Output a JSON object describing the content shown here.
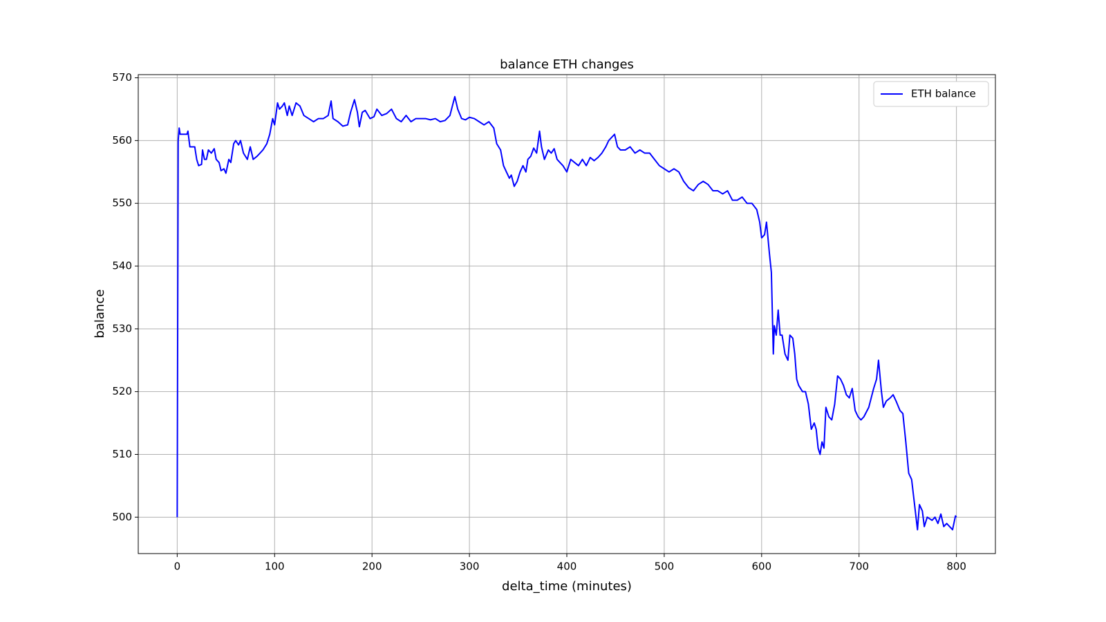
{
  "chart_data": {
    "type": "line",
    "title": "balance ETH changes",
    "x_label": "delta_time (minutes)",
    "y_label": "balance",
    "x": [
      0,
      1,
      2,
      3,
      10,
      11,
      13,
      18,
      20,
      22,
      25,
      26,
      28,
      30,
      32,
      35,
      38,
      40,
      43,
      45,
      48,
      50,
      53,
      55,
      58,
      60,
      63,
      65,
      68,
      72,
      75,
      78,
      82,
      85,
      88,
      92,
      95,
      98,
      100,
      103,
      105,
      108,
      110,
      113,
      115,
      118,
      122,
      126,
      130,
      135,
      140,
      145,
      150,
      155,
      158,
      160,
      165,
      170,
      175,
      178,
      182,
      185,
      187,
      190,
      193,
      198,
      202,
      205,
      210,
      215,
      220,
      225,
      230,
      235,
      240,
      245,
      250,
      255,
      260,
      265,
      270,
      275,
      280,
      285,
      288,
      292,
      296,
      300,
      305,
      310,
      315,
      320,
      325,
      328,
      332,
      335,
      338,
      341,
      343,
      346,
      349,
      352,
      355,
      358,
      360,
      363,
      366,
      369,
      372,
      374,
      377,
      381,
      384,
      387,
      390,
      393,
      396,
      400,
      404,
      408,
      412,
      416,
      420,
      424,
      428,
      432,
      436,
      440,
      443,
      446,
      449,
      452,
      455,
      460,
      465,
      470,
      475,
      480,
      485,
      490,
      495,
      500,
      505,
      510,
      515,
      520,
      525,
      530,
      535,
      540,
      545,
      550,
      555,
      560,
      565,
      570,
      575,
      580,
      585,
      590,
      595,
      598,
      600,
      603,
      605,
      608,
      610,
      612,
      613,
      615,
      617,
      619,
      621,
      624,
      627,
      629,
      632,
      634,
      636,
      638,
      642,
      645,
      648,
      651,
      654,
      656,
      658,
      660,
      662,
      664,
      666,
      669,
      672,
      675,
      678,
      681,
      684,
      687,
      690,
      693,
      696,
      699,
      702,
      705,
      710,
      715,
      718,
      720,
      723,
      725,
      728,
      732,
      735,
      738,
      742,
      745,
      748,
      751,
      754,
      757,
      760,
      762,
      765,
      767,
      770,
      775,
      778,
      781,
      784,
      787,
      790,
      793,
      796,
      799,
      800
    ],
    "series": [
      {
        "name": "ETH balance",
        "color": "#0000ff",
        "values": [
          500,
          560,
          562,
          561,
          561,
          561.5,
          559,
          559,
          557,
          556,
          556.2,
          558.5,
          557,
          557,
          558.5,
          558,
          558.7,
          557,
          556.5,
          555.2,
          555.5,
          554.8,
          557,
          556.5,
          559.5,
          560,
          559.3,
          560,
          558,
          557,
          559,
          557,
          557.5,
          558,
          558.5,
          559.5,
          561,
          563.5,
          562.5,
          566,
          565,
          565.5,
          566,
          564,
          565.5,
          564,
          566,
          565.5,
          564,
          563.5,
          563,
          563.5,
          563.5,
          564,
          566.3,
          563.5,
          563,
          562.3,
          562.5,
          564.5,
          566.5,
          564.5,
          562.2,
          564.5,
          564.8,
          563.5,
          563.8,
          565,
          564,
          564.3,
          565,
          563.5,
          563,
          564,
          563,
          563.5,
          563.5,
          563.5,
          563.3,
          563.5,
          563,
          563.2,
          564,
          567,
          565,
          563.5,
          563.3,
          563.7,
          563.5,
          563,
          562.5,
          563,
          562,
          559.5,
          558.5,
          556,
          555,
          554,
          554.5,
          552.7,
          553.5,
          555,
          556,
          555,
          557,
          557.5,
          558.8,
          558,
          561.5,
          559,
          557,
          558.5,
          558,
          558.7,
          557,
          556.5,
          556,
          555,
          557,
          556.5,
          556,
          557,
          556,
          557.3,
          556.8,
          557.3,
          558,
          559,
          560,
          560.5,
          561,
          559,
          558.5,
          558.5,
          559,
          558,
          558.5,
          558,
          558,
          557,
          556,
          555.5,
          555,
          555.5,
          555,
          553.5,
          552.5,
          552,
          553,
          553.5,
          553,
          552,
          552,
          551.5,
          552,
          550.5,
          550.5,
          551,
          550,
          550,
          549,
          547,
          544.5,
          545,
          547,
          542,
          539,
          526,
          530.5,
          529,
          533,
          529,
          529,
          526,
          525,
          529,
          528.5,
          526,
          522,
          521,
          520,
          520,
          518,
          514,
          515,
          514,
          511,
          510,
          512,
          511,
          517.5,
          516,
          515.5,
          518,
          522.5,
          522,
          521,
          519.5,
          519,
          520.5,
          517,
          516,
          515.5,
          516,
          517.5,
          520.5,
          522,
          525,
          520,
          517.5,
          518.5,
          519,
          519.5,
          518.5,
          517,
          516.5,
          512,
          507,
          506,
          502,
          498,
          502,
          501,
          498.5,
          500,
          499.5,
          500,
          499,
          500.5,
          498.5,
          499,
          498.5,
          498,
          500.2,
          500
        ]
      }
    ],
    "xlim": [
      -40,
      840
    ],
    "ylim": [
      494.2,
      570.5
    ],
    "xticks": [
      0,
      100,
      200,
      300,
      400,
      500,
      600,
      700,
      800
    ],
    "yticks": [
      500,
      510,
      520,
      530,
      540,
      550,
      560,
      570
    ],
    "grid": true,
    "legend": "upper right"
  }
}
